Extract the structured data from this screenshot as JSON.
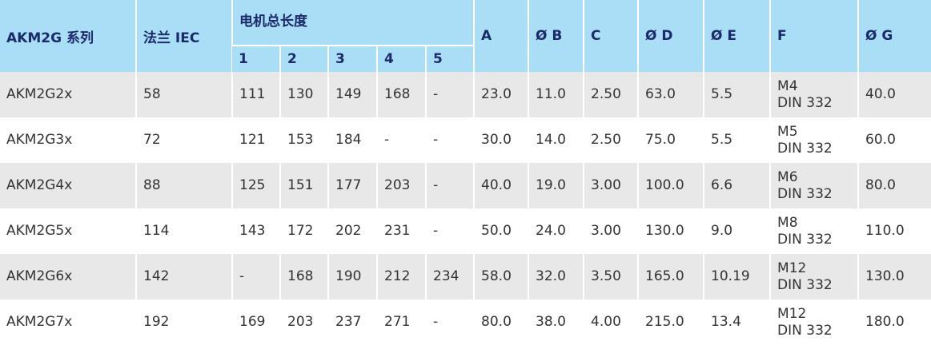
{
  "table": {
    "header": [
      "AKM2G 系列",
      "法兰 IEC",
      "电机总长度",
      "A",
      "Ø B",
      "C",
      "Ø D",
      "Ø E",
      "F",
      "Ø G"
    ],
    "subheader": [
      "1",
      "2",
      "3",
      "4",
      "5"
    ],
    "rows": [
      [
        "AKM2G2x",
        "58",
        "111",
        "130",
        "149",
        "168",
        "-",
        "23.0",
        "11.0",
        "2.50",
        "63.0",
        "5.5",
        [
          "M4",
          "DIN 332"
        ],
        "40.0"
      ],
      [
        "AKM2G3x",
        "72",
        "121",
        "153",
        "184",
        "-",
        "-",
        "30.0",
        "14.0",
        "2.50",
        "75.0",
        "5.5",
        [
          "M5",
          "DIN 332"
        ],
        "60.0"
      ],
      [
        "AKM2G4x",
        "88",
        "125",
        "151",
        "177",
        "203",
        "-",
        "40.0",
        "19.0",
        "3.00",
        "100.0",
        "6.6",
        [
          "M6",
          "DIN 332"
        ],
        "80.0"
      ],
      [
        "AKM2G5x",
        "114",
        "143",
        "172",
        "202",
        "231",
        "-",
        "50.0",
        "24.0",
        "3.00",
        "130.0",
        "9.0",
        [
          "M8",
          "DIN 332"
        ],
        "110.0"
      ],
      [
        "AKM2G6x",
        "142",
        "-",
        "168",
        "190",
        "212",
        "234",
        "58.0",
        "32.0",
        "3.50",
        "165.0",
        "10.19",
        [
          "M12",
          "DIN 332"
        ],
        "130.0"
      ],
      [
        "AKM2G7x",
        "192",
        "169",
        "203",
        "237",
        "271",
        "-",
        "80.0",
        "38.0",
        "4.00",
        "215.0",
        "13.4",
        [
          "M12",
          "DIN 332"
        ],
        "180.0"
      ]
    ]
  }
}
